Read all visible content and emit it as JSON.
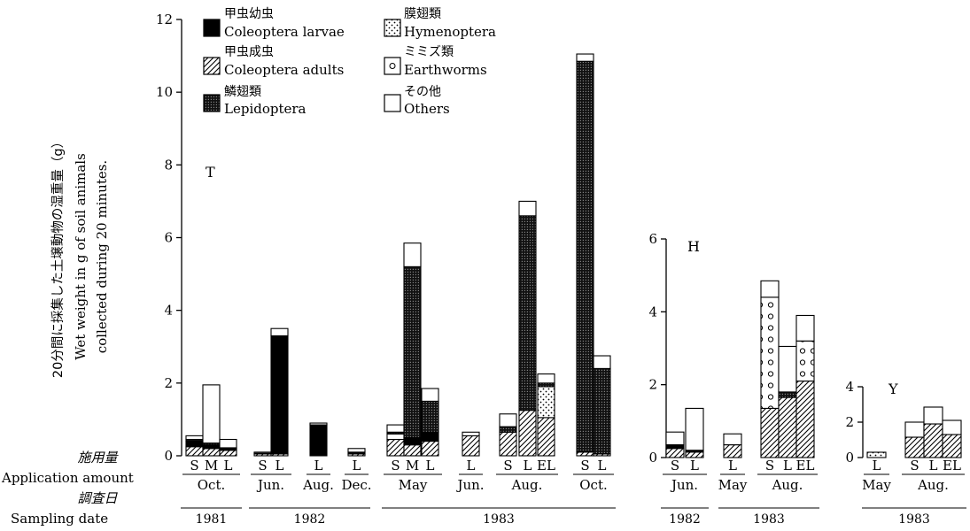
{
  "chart_data": {
    "type": "bar",
    "stacked": true,
    "y_title": "20分間に採集した土壌動物の湿重量（g）",
    "ylabel": "Wet weight in g of soil animals",
    "ylabel2": "collected during 20 minutes.",
    "row_labels": {
      "app_jp": "施用量",
      "app_en": "Application amount",
      "date_jp": "調査日",
      "date_en": "Sampling date"
    },
    "legend": [
      {
        "key": "larvae",
        "jp": "甲虫幼虫",
        "en": "Coleoptera larvae",
        "fill": "#000000"
      },
      {
        "key": "adults",
        "jp": "甲虫成虫",
        "en": "Coleoptera adults",
        "fill": "hatch"
      },
      {
        "key": "lep",
        "jp": "鱗翅類",
        "en": "Lepidoptera",
        "fill": "grid"
      },
      {
        "key": "hym",
        "jp": "膜翅類",
        "en": "Hymenoptera",
        "fill": "dots"
      },
      {
        "key": "ew",
        "jp": "ミミズ類",
        "en": "Earthworms",
        "fill": "circles"
      },
      {
        "key": "oth",
        "jp": "その他",
        "en": "Others",
        "fill": "#ffffff"
      }
    ],
    "panels": [
      {
        "id": "T",
        "label": "T",
        "ylim": [
          0,
          12
        ],
        "yticks": [
          0,
          2,
          4,
          6,
          8,
          10,
          12
        ],
        "groups": [
          {
            "month": "Oct.",
            "year": "1981",
            "bars": [
              {
                "label": "S",
                "segments": {
                  "adults": 0.25,
                  "larvae": 0.15,
                  "lep": 0.05,
                  "oth": 0.1
                }
              },
              {
                "label": "M",
                "segments": {
                  "adults": 0.2,
                  "larvae": 0.1,
                  "lep": 0.05,
                  "oth": 1.6
                }
              },
              {
                "label": "L",
                "segments": {
                  "adults": 0.15,
                  "larvae": 0.05,
                  "lep": 0.02,
                  "oth": 0.23
                }
              }
            ]
          },
          {
            "month": "Jun.",
            "year": "1982",
            "bars": [
              {
                "label": "S",
                "segments": {
                  "adults": 0.05,
                  "larvae": 0.02,
                  "oth": 0.03
                }
              },
              {
                "label": "L",
                "segments": {
                  "adults": 0.05,
                  "larvae": 3.25,
                  "oth": 0.2
                }
              }
            ]
          },
          {
            "month": "Aug.",
            "year": "1982",
            "bars": [
              {
                "label": "L",
                "segments": {
                  "larvae": 0.85,
                  "oth": 0.05
                }
              }
            ]
          },
          {
            "month": "Dec.",
            "year": "1982",
            "bars": [
              {
                "label": "L",
                "segments": {
                  "adults": 0.05,
                  "larvae": 0.05,
                  "oth": 0.1
                }
              }
            ]
          },
          {
            "month": "May",
            "year": "1983",
            "bars": [
              {
                "label": "S",
                "segments": {
                  "adults": 0.45,
                  "ew": 0.15,
                  "lep": 0.05,
                  "oth": 0.2
                }
              },
              {
                "label": "M",
                "segments": {
                  "adults": 0.3,
                  "larvae": 0.2,
                  "lep": 4.7,
                  "oth": 0.65
                }
              },
              {
                "label": "L",
                "segments": {
                  "adults": 0.4,
                  "larvae": 0.25,
                  "lep": 0.85,
                  "oth": 0.35
                }
              }
            ]
          },
          {
            "month": "Jun.",
            "year": "1983",
            "bars": [
              {
                "label": "L",
                "segments": {
                  "adults": 0.55,
                  "oth": 0.1
                }
              }
            ]
          },
          {
            "month": "Aug.",
            "year": "1983",
            "bars": [
              {
                "label": "S",
                "segments": {
                  "adults": 0.65,
                  "lep": 0.15,
                  "oth": 0.35
                }
              },
              {
                "label": "L",
                "segments": {
                  "adults": 1.25,
                  "lep": 5.35,
                  "oth": 0.4
                }
              },
              {
                "label": "EL",
                "segments": {
                  "adults": 1.05,
                  "hym": 0.85,
                  "lep": 0.1,
                  "oth": 0.25
                }
              }
            ]
          },
          {
            "month": "Oct.",
            "year": "1983",
            "bars": [
              {
                "label": "S",
                "segments": {
                  "adults": 0.1,
                  "lep": 10.75,
                  "oth": 0.2
                }
              },
              {
                "label": "L",
                "segments": {
                  "adults": 0.05,
                  "lep": 2.35,
                  "oth": 0.35
                }
              }
            ]
          }
        ],
        "years": [
          {
            "label": "1981",
            "from": 0,
            "to": 0
          },
          {
            "label": "1982",
            "from": 1,
            "to": 3
          },
          {
            "label": "1983",
            "from": 4,
            "to": 7
          }
        ]
      },
      {
        "id": "H",
        "label": "H",
        "ylim": [
          0,
          6
        ],
        "yticks": [
          0,
          2,
          4,
          6
        ],
        "groups": [
          {
            "month": "Jun.",
            "year": "1982",
            "bars": [
              {
                "label": "S",
                "segments": {
                  "adults": 0.25,
                  "larvae": 0.1,
                  "oth": 0.35
                }
              },
              {
                "label": "L",
                "segments": {
                  "adults": 0.15,
                  "larvae": 0.05,
                  "oth": 1.15
                }
              }
            ]
          },
          {
            "month": "May",
            "year": "1983",
            "bars": [
              {
                "label": "L",
                "segments": {
                  "adults": 0.35,
                  "oth": 0.3
                }
              }
            ]
          },
          {
            "month": "Aug.",
            "year": "1983",
            "bars": [
              {
                "label": "S",
                "segments": {
                  "adults": 1.35,
                  "ew": 3.05,
                  "oth": 0.45
                }
              },
              {
                "label": "L",
                "segments": {
                  "adults": 1.65,
                  "lep": 0.15,
                  "oth": 1.25
                }
              },
              {
                "label": "EL",
                "segments": {
                  "adults": 2.1,
                  "ew": 1.1,
                  "oth": 0.7
                }
              }
            ]
          }
        ],
        "years": [
          {
            "label": "1982",
            "from": 0,
            "to": 0
          },
          {
            "label": "1983",
            "from": 1,
            "to": 2
          }
        ]
      },
      {
        "id": "Y",
        "label": "Y",
        "ylim": [
          0,
          4
        ],
        "yticks": [
          0,
          2,
          4
        ],
        "groups": [
          {
            "month": "May",
            "year": "1983",
            "bars": [
              {
                "label": "L",
                "segments": {
                  "hym": 0.3
                }
              }
            ]
          },
          {
            "month": "Aug.",
            "year": "1983",
            "bars": [
              {
                "label": "S",
                "segments": {
                  "adults": 1.15,
                  "oth": 0.85
                }
              },
              {
                "label": "L",
                "segments": {
                  "adults": 1.9,
                  "oth": 0.95
                }
              },
              {
                "label": "EL",
                "segments": {
                  "adults": 1.3,
                  "oth": 0.8
                }
              }
            ]
          }
        ],
        "years": [
          {
            "label": "1983",
            "from": 0,
            "to": 1
          }
        ]
      }
    ]
  }
}
